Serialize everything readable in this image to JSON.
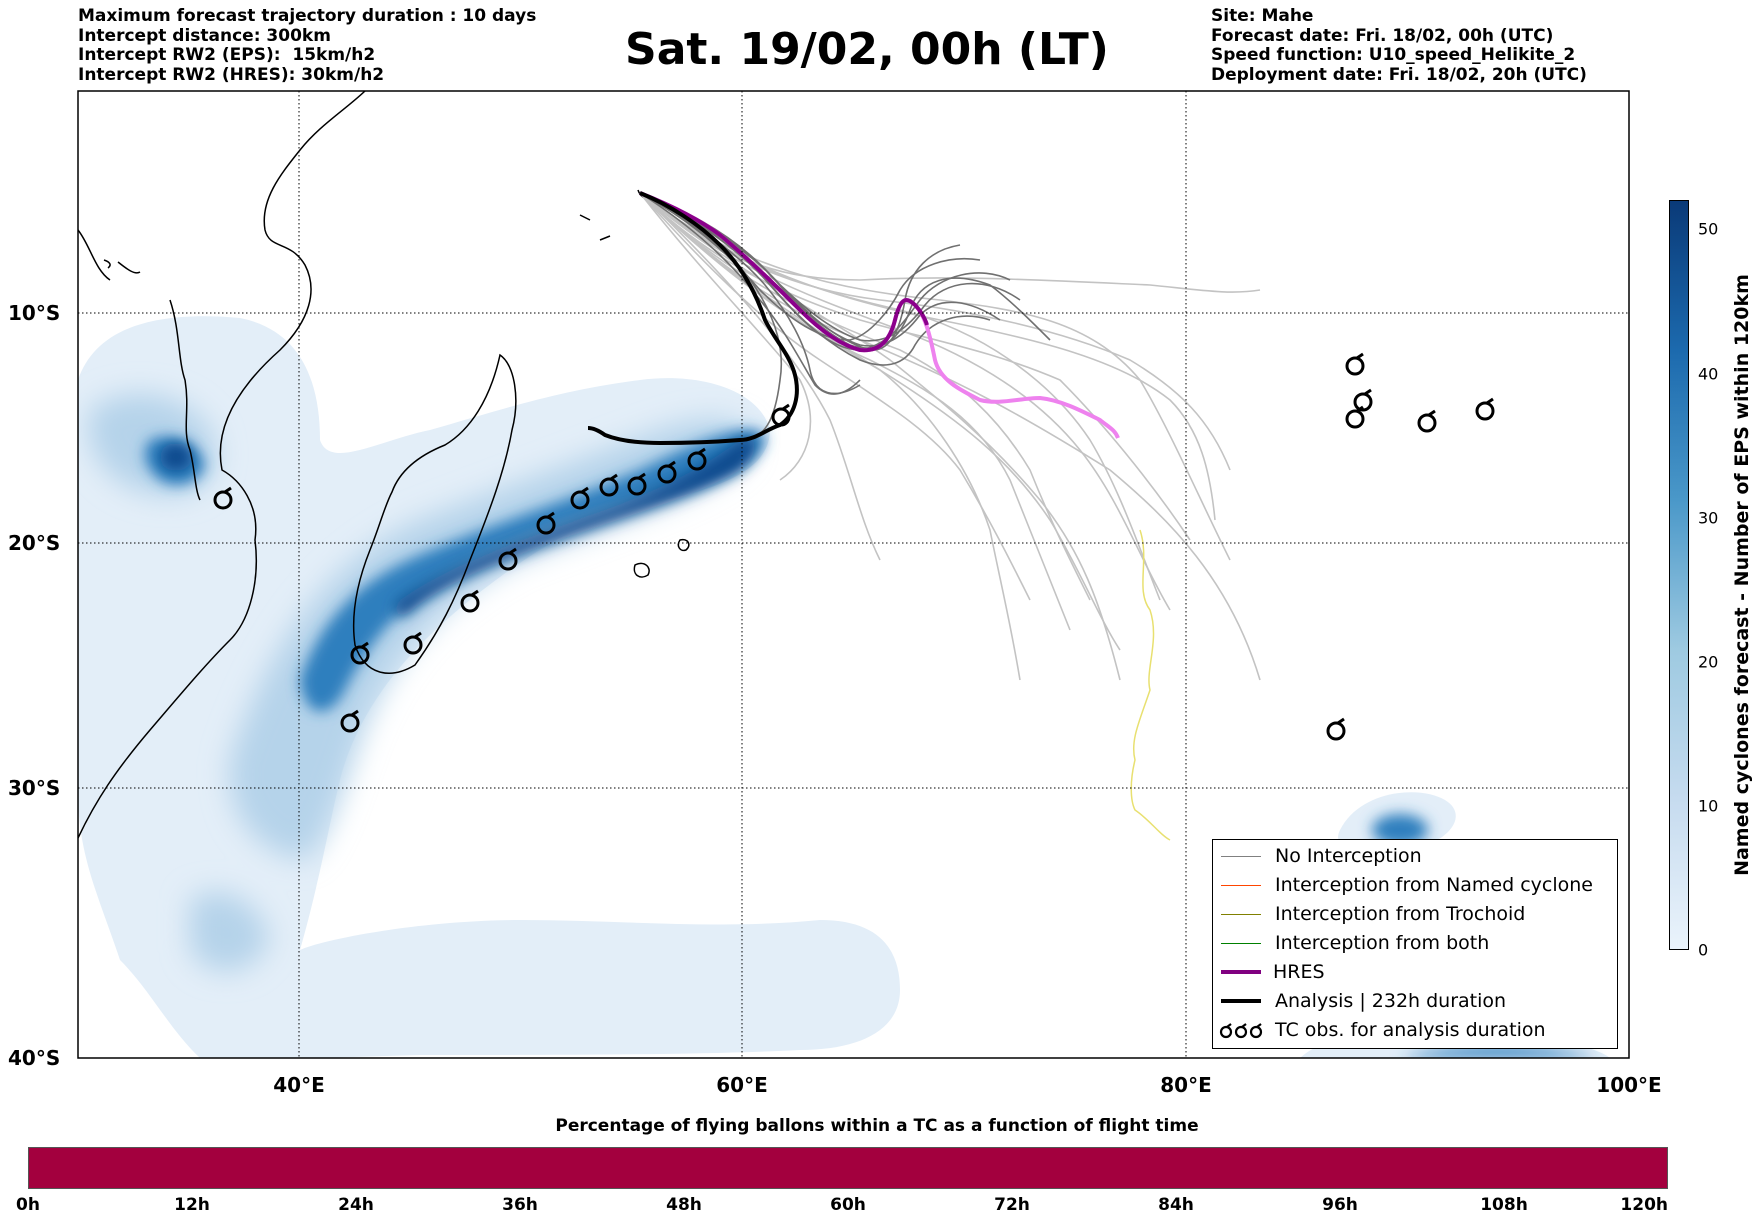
{
  "header_left": [
    "Maximum forecast trajectory duration : 10 days",
    "Intercept distance: 300km",
    "Intercept RW2 (EPS):  15km/h2",
    "Intercept RW2 (HRES): 30km/h2"
  ],
  "header_right": [
    "Site: Mahe",
    "Forecast date: Fri. 18/02, 00h (UTC)",
    "Speed function: U10_speed_Helikite_2",
    "Deployment date: Fri. 18/02, 20h (UTC)"
  ],
  "title": "Sat. 19/02, 00h (LT)",
  "map": {
    "lon_range": [
      30,
      100
    ],
    "lat_range": [
      -40,
      0
    ],
    "lat_labels": [
      "10°S",
      "20°S",
      "30°S",
      "40°S"
    ],
    "lon_labels": [
      "40°E",
      "60°E",
      "80°E",
      "100°E"
    ],
    "gridlines": "dotted"
  },
  "legend": {
    "items": [
      {
        "label": "No Interception",
        "color": "#808080"
      },
      {
        "label": "Interception from Named cyclone",
        "color": "#ff4500"
      },
      {
        "label": "Interception from Trochoid",
        "color": "#808000"
      },
      {
        "label": "Interception from both",
        "color": "#008000"
      },
      {
        "label": "HRES",
        "color": "#800080"
      },
      {
        "label": "Analysis | 232h duration",
        "color": "#000000"
      },
      {
        "label": "TC obs. for analysis duration",
        "color": "#000000"
      }
    ],
    "placement": "bottom-right"
  },
  "colorbar": {
    "title": "Named cyclones forecast - Number of EPS within 120km",
    "ticks": [
      "0",
      "10",
      "20",
      "30",
      "40",
      "50"
    ]
  },
  "timebar": {
    "title": "Percentage of flying ballons within a TC as a function of flight time",
    "ticks": [
      "0h",
      "12h",
      "24h",
      "36h",
      "48h",
      "60h",
      "72h",
      "84h",
      "96h",
      "108h",
      "120h"
    ],
    "color": "#a3003e"
  },
  "colors": {
    "hres": "#8b008b",
    "analysis": "#000000",
    "density_light": "#dbe9f6",
    "density_dark": "#0a4a8a"
  }
}
